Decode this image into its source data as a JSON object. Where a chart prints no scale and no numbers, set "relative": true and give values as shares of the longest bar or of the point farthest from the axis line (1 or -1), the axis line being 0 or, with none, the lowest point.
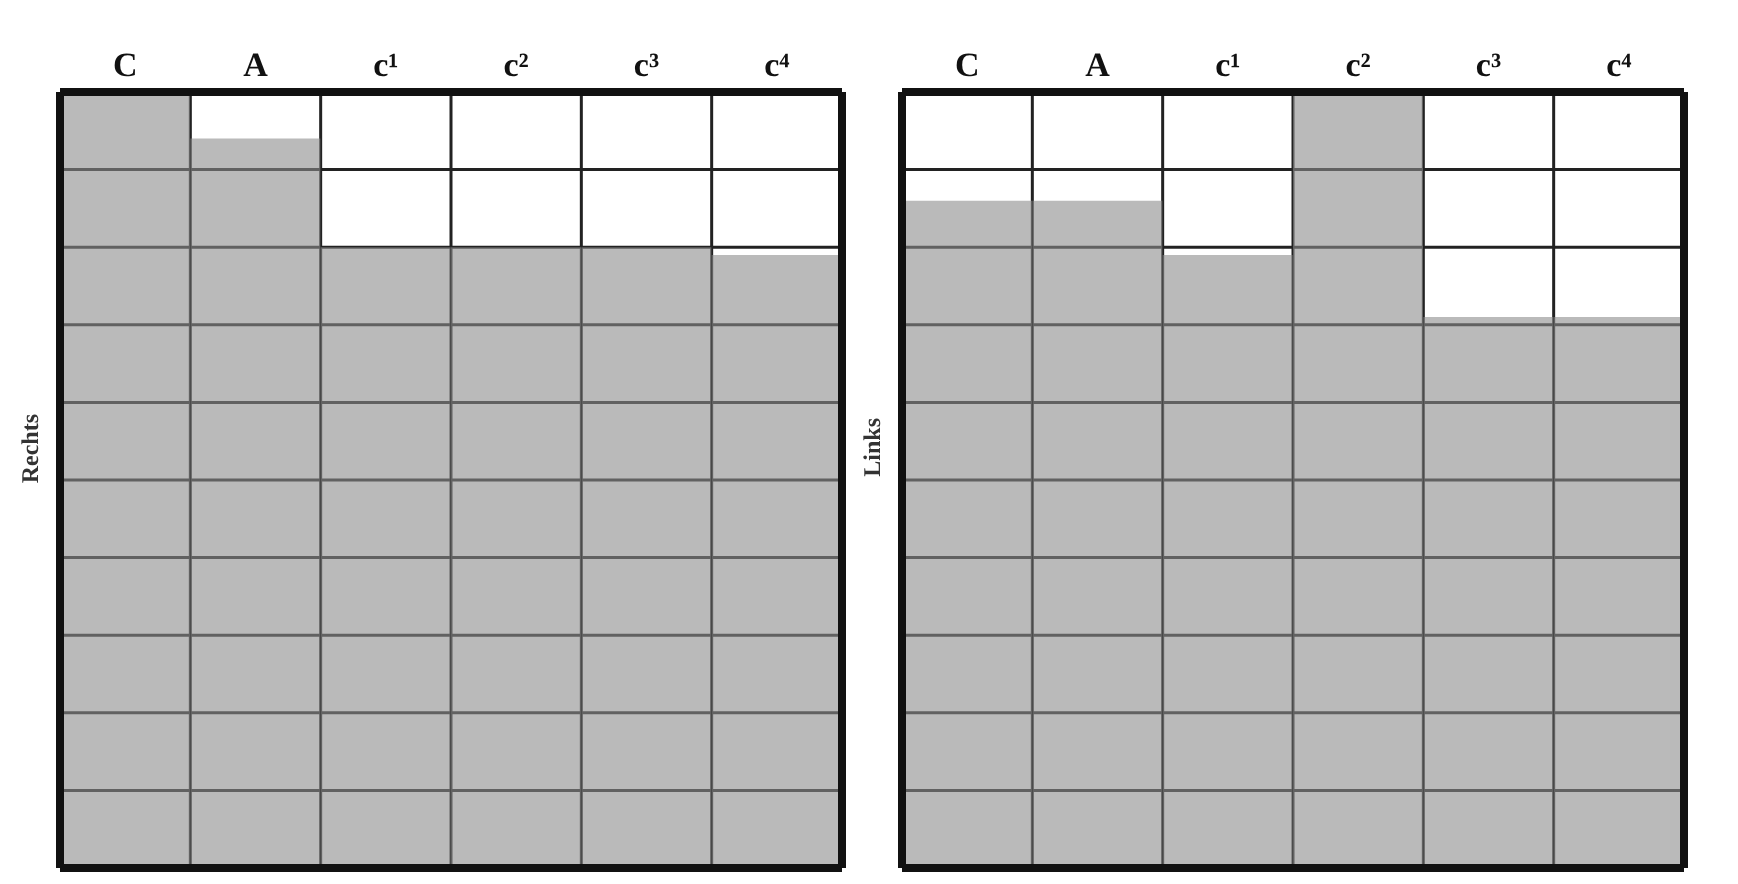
{
  "chart_data": [
    {
      "type": "bar",
      "categories": [
        "C",
        "A",
        "c¹",
        "c²",
        "c³",
        "c⁴"
      ],
      "ylabel": "Rechts",
      "relative": true,
      "grid": true,
      "series": [
        {
          "color": "#8c8c8c",
          "values": [
            1,
            0.94,
            0.8,
            0.8,
            0.8,
            0.79
          ]
        }
      ]
    },
    {
      "type": "bar",
      "categories": [
        "C",
        "A",
        "c¹",
        "c²",
        "c³",
        "c⁴"
      ],
      "ylabel": "Links",
      "relative": true,
      "grid": true,
      "series": [
        {
          "color": "#8c8c8c",
          "values": [
            0.86,
            0.86,
            0.79,
            1,
            0.71,
            0.71
          ]
        }
      ]
    }
  ]
}
